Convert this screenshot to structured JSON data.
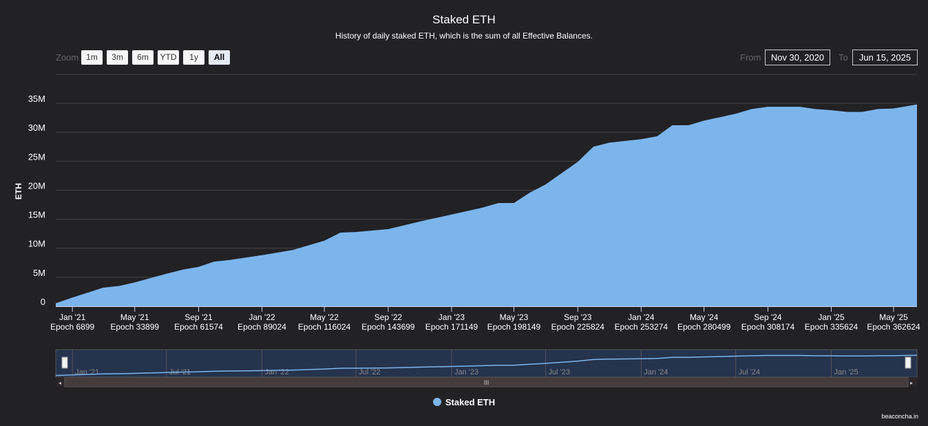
{
  "header": {
    "title": "Staked ETH",
    "subtitle": "History of daily staked ETH, which is the sum of all Effective Balances."
  },
  "zoom": {
    "label": "Zoom",
    "buttons": [
      "1m",
      "3m",
      "6m",
      "YTD",
      "1y",
      "All"
    ],
    "active": "All"
  },
  "range": {
    "from_label": "From",
    "from": "Nov 30, 2020",
    "to_label": "To",
    "to": "Jun 15, 2025"
  },
  "credit": "beaconcha.in",
  "colors": {
    "series": "#7cb5ec",
    "background": "#222124",
    "navigator_mask": "#25334d"
  },
  "chart_data": {
    "type": "area",
    "title": "Staked ETH",
    "ylabel": "ETH",
    "xlabel": "",
    "ylim": [
      0,
      35000000
    ],
    "xlim": [
      "2020-11-30",
      "2025-06-15"
    ],
    "grid": true,
    "legend": "bottom-center",
    "y_ticks": [
      "0",
      "5M",
      "10M",
      "15M",
      "20M",
      "25M",
      "30M",
      "35M"
    ],
    "x_ticks": [
      {
        "date": "2021-01-01",
        "label": "Jan '21",
        "epoch": "Epoch 6899"
      },
      {
        "date": "2021-05-01",
        "label": "May '21",
        "epoch": "Epoch 33899"
      },
      {
        "date": "2021-09-01",
        "label": "Sep '21",
        "epoch": "Epoch 61574"
      },
      {
        "date": "2022-01-01",
        "label": "Jan '22",
        "epoch": "Epoch 89024"
      },
      {
        "date": "2022-05-01",
        "label": "May '22",
        "epoch": "Epoch 116024"
      },
      {
        "date": "2022-09-01",
        "label": "Sep '22",
        "epoch": "Epoch 143699"
      },
      {
        "date": "2023-01-01",
        "label": "Jan '23",
        "epoch": "Epoch 171149"
      },
      {
        "date": "2023-05-01",
        "label": "May '23",
        "epoch": "Epoch 198149"
      },
      {
        "date": "2023-09-01",
        "label": "Sep '23",
        "epoch": "Epoch 225824"
      },
      {
        "date": "2024-01-01",
        "label": "Jan '24",
        "epoch": "Epoch 253274"
      },
      {
        "date": "2024-05-01",
        "label": "May '24",
        "epoch": "Epoch 280499"
      },
      {
        "date": "2024-09-01",
        "label": "Sep '24",
        "epoch": "Epoch 308174"
      },
      {
        "date": "2025-01-01",
        "label": "Jan '25",
        "epoch": "Epoch 335624"
      },
      {
        "date": "2025-05-01",
        "label": "May '25",
        "epoch": "Epoch 362624"
      }
    ],
    "navigator_ticks": [
      {
        "date": "2021-01-01",
        "label": "Jan '21"
      },
      {
        "date": "2021-07-01",
        "label": "Jul '21"
      },
      {
        "date": "2022-01-01",
        "label": "Jan '22"
      },
      {
        "date": "2022-07-01",
        "label": "Jul '22"
      },
      {
        "date": "2023-01-01",
        "label": "Jan '23"
      },
      {
        "date": "2023-07-01",
        "label": "Jul '23"
      },
      {
        "date": "2024-01-01",
        "label": "Jan '24"
      },
      {
        "date": "2024-07-01",
        "label": "Jul '24"
      },
      {
        "date": "2025-01-01",
        "label": "Jan '25"
      }
    ],
    "series": [
      {
        "name": "Staked ETH",
        "x": [
          "2020-11-30",
          "2021-01-01",
          "2021-03-01",
          "2021-04-01",
          "2021-05-01",
          "2021-07-01",
          "2021-08-01",
          "2021-09-01",
          "2021-10-01",
          "2021-11-01",
          "2022-01-01",
          "2022-03-01",
          "2022-05-01",
          "2022-06-01",
          "2022-07-01",
          "2022-09-01",
          "2022-11-01",
          "2023-01-01",
          "2023-03-01",
          "2023-04-01",
          "2023-05-01",
          "2023-06-01",
          "2023-07-01",
          "2023-09-01",
          "2023-10-01",
          "2023-11-01",
          "2024-01-01",
          "2024-02-01",
          "2024-03-01",
          "2024-04-01",
          "2024-05-01",
          "2024-06-01",
          "2024-07-01",
          "2024-08-01",
          "2024-09-01",
          "2024-10-01",
          "2024-11-01",
          "2024-12-01",
          "2025-01-01",
          "2025-02-01",
          "2025-03-01",
          "2025-04-01",
          "2025-05-01",
          "2025-06-15"
        ],
        "values": [
          500000,
          1500000,
          3200000,
          3500000,
          4100000,
          5600000,
          6300000,
          6800000,
          7700000,
          8000000,
          8800000,
          9700000,
          11300000,
          12700000,
          12800000,
          13300000,
          14600000,
          15800000,
          17000000,
          17800000,
          17800000,
          19600000,
          21000000,
          24900000,
          27500000,
          28200000,
          28800000,
          29300000,
          31200000,
          31200000,
          32000000,
          32600000,
          33200000,
          34000000,
          34400000,
          34400000,
          34400000,
          34000000,
          33800000,
          33500000,
          33500000,
          34000000,
          34100000,
          34800000
        ]
      }
    ]
  }
}
